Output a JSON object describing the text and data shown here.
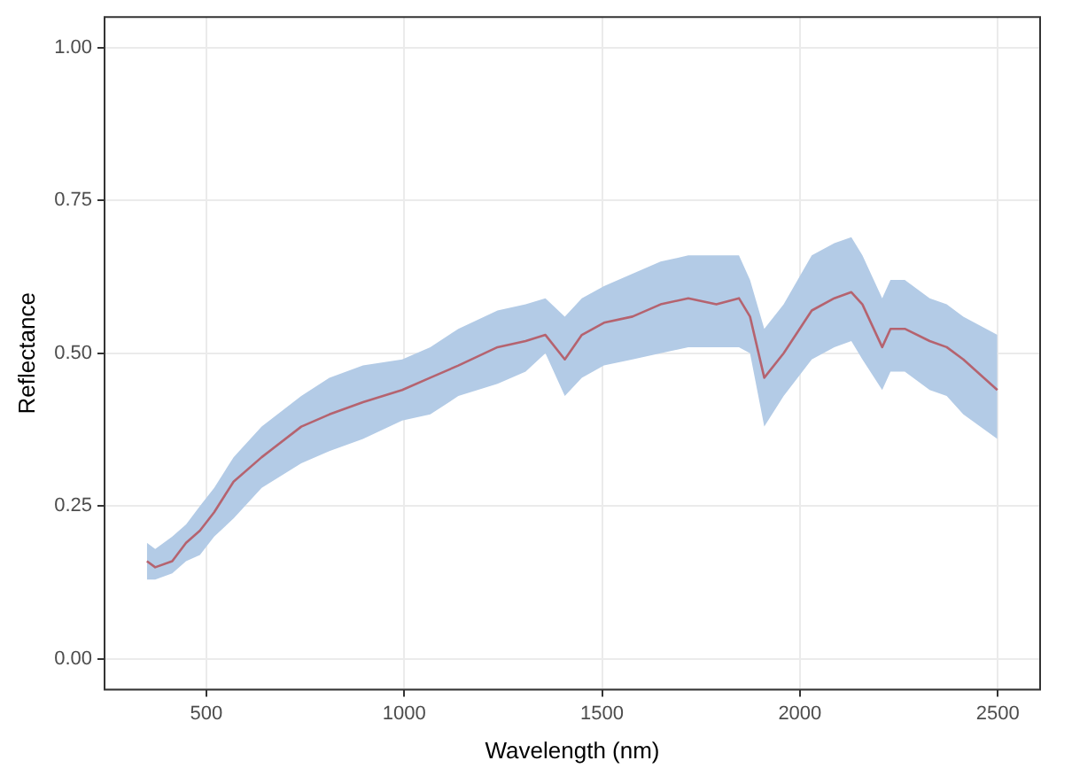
{
  "chart_data": {
    "type": "line",
    "xlabel": "Wavelength (nm)",
    "ylabel": "Reflectance",
    "xlim": [
      243,
      2607
    ],
    "xticks": [
      500,
      1000,
      1500,
      2000,
      2500
    ],
    "ylim": [
      -0.05,
      1.05
    ],
    "yticks": [
      {
        "value": 0,
        "label": "0.00"
      },
      {
        "value": 0.25,
        "label": "0.25"
      },
      {
        "value": 0.5,
        "label": "0.50"
      },
      {
        "value": 0.75,
        "label": "0.75"
      },
      {
        "value": 1,
        "label": "1.00"
      }
    ],
    "grid": true,
    "legend": false,
    "marker": "none",
    "line_style": "solid",
    "series": [
      {
        "color": "#b5636f",
        "x": [
          350,
          371,
          414,
          449,
          484,
          520,
          569,
          640,
          740,
          811,
          896,
          995,
          1066,
          1137,
          1236,
          1307,
          1357,
          1406,
          1449,
          1505,
          1577,
          1648,
          1718,
          1789,
          1846,
          1874,
          1910,
          1959,
          2030,
          2087,
          2130,
          2158,
          2208,
          2229,
          2265,
          2328,
          2371,
          2413,
          2499
        ],
        "values": [
          0.16,
          0.15,
          0.16,
          0.19,
          0.21,
          0.24,
          0.29,
          0.33,
          0.38,
          0.4,
          0.42,
          0.44,
          0.46,
          0.48,
          0.51,
          0.52,
          0.53,
          0.49,
          0.53,
          0.55,
          0.56,
          0.58,
          0.59,
          0.58,
          0.59,
          0.56,
          0.46,
          0.5,
          0.57,
          0.59,
          0.6,
          0.58,
          0.51,
          0.54,
          0.54,
          0.52,
          0.51,
          0.49,
          0.44
        ],
        "lower": [
          0.13,
          0.13,
          0.14,
          0.16,
          0.17,
          0.2,
          0.23,
          0.28,
          0.32,
          0.34,
          0.36,
          0.39,
          0.4,
          0.43,
          0.45,
          0.47,
          0.5,
          0.43,
          0.46,
          0.48,
          0.49,
          0.5,
          0.51,
          0.51,
          0.51,
          0.5,
          0.38,
          0.43,
          0.49,
          0.51,
          0.52,
          0.49,
          0.44,
          0.47,
          0.47,
          0.44,
          0.43,
          0.4,
          0.36
        ],
        "upper": [
          0.19,
          0.18,
          0.2,
          0.22,
          0.25,
          0.28,
          0.33,
          0.38,
          0.43,
          0.46,
          0.48,
          0.49,
          0.51,
          0.54,
          0.57,
          0.58,
          0.59,
          0.56,
          0.59,
          0.61,
          0.63,
          0.65,
          0.66,
          0.66,
          0.66,
          0.62,
          0.54,
          0.58,
          0.66,
          0.68,
          0.69,
          0.66,
          0.59,
          0.62,
          0.62,
          0.59,
          0.58,
          0.56,
          0.53
        ]
      }
    ]
  }
}
